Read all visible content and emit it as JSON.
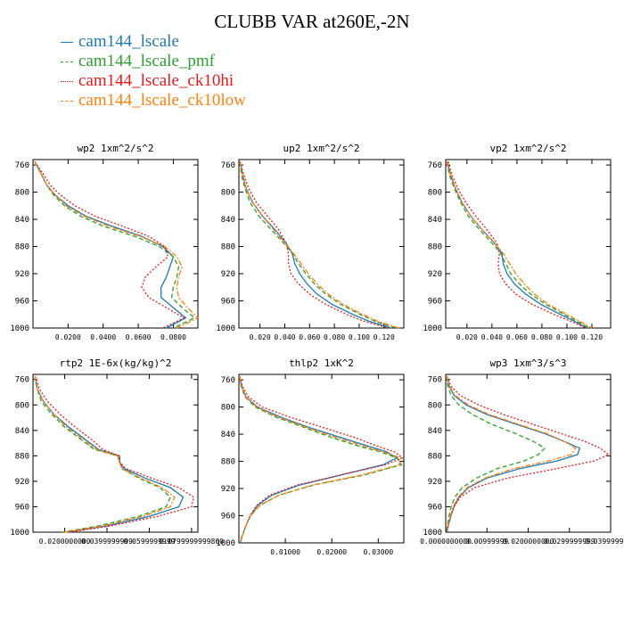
{
  "title": "CLUBB VAR at260E,-2N",
  "colors": {
    "cam144_lscale": "#1f77b4",
    "cam144_lscale_pmf": "#2ca02c",
    "cam144_lscale_ck10hi": "#e41a1c",
    "cam144_lscale_ck10low": "#ff7f0e"
  },
  "legend": [
    {
      "name": "cam144_lscale",
      "color": "#1f77b4",
      "dash": "solid"
    },
    {
      "name": "cam144_lscale_pmf",
      "color": "#2ca02c",
      "dash": "dashed"
    },
    {
      "name": "cam144_lscale_ck10hi",
      "color": "#e41a1c",
      "dash": "dotted"
    },
    {
      "name": "cam144_lscale_ck10low",
      "color": "#ff7f0e",
      "dash": "dashdot"
    }
  ],
  "chart_data": [
    {
      "type": "line",
      "title": "wp2  1xm^2/s^2",
      "xlim": [
        0.0,
        0.094
      ],
      "ylim": [
        1000,
        752
      ],
      "xticks": [
        0.02,
        0.04,
        0.06,
        0.08
      ],
      "xticklabels": [
        "0.0200",
        "0.0400",
        "0.0600",
        "0.0800"
      ],
      "yticks": [
        760,
        800,
        840,
        880,
        920,
        960,
        1000
      ],
      "yticklabels": [
        "760",
        "800",
        "840",
        "880",
        "920",
        "960",
        "1000"
      ],
      "y": [
        755,
        770,
        790,
        805,
        820,
        835,
        850,
        865,
        880,
        895,
        910,
        925,
        940,
        955,
        970,
        985,
        1000
      ],
      "series": [
        {
          "name": "cam144_lscale",
          "values": [
            0.001,
            0.004,
            0.008,
            0.013,
            0.02,
            0.03,
            0.045,
            0.062,
            0.074,
            0.08,
            0.078,
            0.076,
            0.073,
            0.073,
            0.08,
            0.087,
            0.076
          ]
        },
        {
          "name": "cam144_lscale_pmf",
          "values": [
            0.001,
            0.004,
            0.008,
            0.012,
            0.018,
            0.027,
            0.04,
            0.058,
            0.072,
            0.08,
            0.083,
            0.082,
            0.08,
            0.079,
            0.085,
            0.092,
            0.08
          ]
        },
        {
          "name": "cam144_lscale_ck10hi",
          "values": [
            0.001,
            0.005,
            0.01,
            0.016,
            0.024,
            0.035,
            0.051,
            0.066,
            0.075,
            0.077,
            0.07,
            0.064,
            0.062,
            0.066,
            0.076,
            0.086,
            0.074
          ]
        },
        {
          "name": "cam144_lscale_ck10low",
          "values": [
            0.001,
            0.004,
            0.008,
            0.013,
            0.019,
            0.029,
            0.043,
            0.061,
            0.075,
            0.082,
            0.085,
            0.083,
            0.082,
            0.083,
            0.088,
            0.094,
            0.082
          ]
        }
      ]
    },
    {
      "type": "line",
      "title": "up2  1xm^2/s^2",
      "xlim": [
        0.003,
        0.136
      ],
      "ylim": [
        1000,
        752
      ],
      "xticks": [
        0.02,
        0.04,
        0.06,
        0.08,
        0.1,
        0.12
      ],
      "xticklabels": [
        "0.020",
        "0.040",
        "0.060",
        "0.080",
        "0.100",
        "0.120"
      ],
      "yticks": [
        760,
        800,
        840,
        880,
        920,
        960,
        1000
      ],
      "yticklabels": [
        "760",
        "800",
        "840",
        "880",
        "920",
        "960",
        "1000"
      ],
      "y": [
        755,
        775,
        795,
        815,
        835,
        855,
        875,
        890,
        905,
        920,
        935,
        950,
        965,
        980,
        990,
        1000
      ],
      "series": [
        {
          "name": "cam144_lscale",
          "values": [
            0.004,
            0.006,
            0.009,
            0.014,
            0.022,
            0.032,
            0.041,
            0.046,
            0.048,
            0.052,
            0.058,
            0.066,
            0.078,
            0.095,
            0.108,
            0.126
          ]
        },
        {
          "name": "cam144_lscale_pmf",
          "values": [
            0.004,
            0.005,
            0.008,
            0.012,
            0.019,
            0.029,
            0.039,
            0.046,
            0.051,
            0.057,
            0.064,
            0.073,
            0.085,
            0.101,
            0.113,
            0.13
          ]
        },
        {
          "name": "cam144_lscale_ck10hi",
          "values": [
            0.004,
            0.007,
            0.011,
            0.017,
            0.026,
            0.035,
            0.041,
            0.043,
            0.043,
            0.045,
            0.051,
            0.06,
            0.073,
            0.09,
            0.104,
            0.124
          ]
        },
        {
          "name": "cam144_lscale_ck10low",
          "values": [
            0.004,
            0.006,
            0.009,
            0.014,
            0.022,
            0.031,
            0.04,
            0.047,
            0.053,
            0.059,
            0.066,
            0.075,
            0.087,
            0.103,
            0.115,
            0.132
          ]
        }
      ]
    },
    {
      "type": "line",
      "title": "vp2  1xm^2/s^2",
      "xlim": [
        0.003,
        0.135
      ],
      "ylim": [
        1000,
        752
      ],
      "xticks": [
        0.02,
        0.04,
        0.06,
        0.08,
        0.1,
        0.12
      ],
      "xticklabels": [
        "0.020",
        "0.040",
        "0.060",
        "0.080",
        "0.100",
        "0.120"
      ],
      "yticks": [
        760,
        800,
        840,
        880,
        920,
        960,
        1000
      ],
      "yticklabels": [
        "760",
        "800",
        "840",
        "880",
        "920",
        "960",
        "1000"
      ],
      "y": [
        755,
        775,
        795,
        815,
        835,
        855,
        875,
        890,
        905,
        920,
        935,
        950,
        965,
        980,
        990,
        1000
      ],
      "series": [
        {
          "name": "cam144_lscale",
          "values": [
            0.004,
            0.007,
            0.011,
            0.016,
            0.023,
            0.032,
            0.042,
            0.048,
            0.049,
            0.052,
            0.058,
            0.067,
            0.079,
            0.095,
            0.106,
            0.116
          ]
        },
        {
          "name": "cam144_lscale_pmf",
          "values": [
            0.004,
            0.006,
            0.01,
            0.015,
            0.021,
            0.03,
            0.04,
            0.047,
            0.051,
            0.055,
            0.062,
            0.071,
            0.083,
            0.098,
            0.108,
            0.118
          ]
        },
        {
          "name": "cam144_lscale_ck10hi",
          "values": [
            0.005,
            0.008,
            0.013,
            0.019,
            0.027,
            0.036,
            0.044,
            0.046,
            0.045,
            0.046,
            0.051,
            0.059,
            0.072,
            0.09,
            0.103,
            0.115
          ]
        },
        {
          "name": "cam144_lscale_ck10low",
          "values": [
            0.004,
            0.007,
            0.011,
            0.016,
            0.023,
            0.032,
            0.042,
            0.049,
            0.054,
            0.059,
            0.066,
            0.074,
            0.085,
            0.1,
            0.11,
            0.12
          ]
        }
      ]
    },
    {
      "type": "line",
      "title": "rtp2  1E-6x(kg/kg)^2",
      "xlim": [
        0.005,
        0.083
      ],
      "ylim": [
        1000,
        752
      ],
      "xticks": [
        0.02,
        0.04,
        0.06,
        0.08
      ],
      "xticklabels": [
        "0.0200000000",
        "0.0399999999",
        "0.0599999999",
        "0.0799999999800"
      ],
      "yticks": [
        760,
        800,
        840,
        880,
        920,
        960,
        1000
      ],
      "yticklabels": [
        "760",
        "800",
        "840",
        "880",
        "920",
        "960",
        "1000"
      ],
      "y": [
        755,
        775,
        795,
        815,
        835,
        855,
        870,
        880,
        890,
        900,
        915,
        930,
        945,
        960,
        975,
        990,
        1000
      ],
      "series": [
        {
          "name": "cam144_lscale",
          "values": [
            0.006,
            0.007,
            0.01,
            0.015,
            0.022,
            0.03,
            0.036,
            0.046,
            0.046,
            0.048,
            0.058,
            0.07,
            0.076,
            0.074,
            0.06,
            0.04,
            0.021
          ]
        },
        {
          "name": "cam144_lscale_pmf",
          "values": [
            0.006,
            0.007,
            0.009,
            0.014,
            0.02,
            0.028,
            0.034,
            0.045,
            0.046,
            0.047,
            0.055,
            0.065,
            0.07,
            0.068,
            0.055,
            0.036,
            0.019
          ]
        },
        {
          "name": "cam144_lscale_ck10hi",
          "values": [
            0.006,
            0.008,
            0.012,
            0.018,
            0.025,
            0.033,
            0.038,
            0.046,
            0.046,
            0.049,
            0.061,
            0.074,
            0.081,
            0.08,
            0.064,
            0.042,
            0.022
          ]
        },
        {
          "name": "cam144_lscale_ck10low",
          "values": [
            0.006,
            0.007,
            0.01,
            0.015,
            0.021,
            0.029,
            0.035,
            0.045,
            0.046,
            0.047,
            0.056,
            0.066,
            0.072,
            0.07,
            0.057,
            0.038,
            0.02
          ]
        }
      ]
    },
    {
      "type": "line",
      "title": "thlp2  1xK^2",
      "xlim": [
        0.0,
        0.0355
      ],
      "ylim": [
        1000,
        752
      ],
      "xticks": [
        0.01,
        0.02,
        0.03
      ],
      "xticklabels": [
        "0.01000",
        "0.02000",
        "0.03000"
      ],
      "yticks": [
        760,
        800,
        840,
        880,
        920,
        960,
        1000
      ],
      "yticklabels": [
        "760",
        "800",
        "840",
        "880",
        "920",
        "960",
        "1000"
      ],
      "y": [
        755,
        770,
        785,
        800,
        815,
        830,
        845,
        858,
        866,
        875,
        885,
        900,
        915,
        930,
        945,
        960,
        975,
        990,
        1000
      ],
      "series": [
        {
          "name": "cam144_lscale",
          "values": [
            0.0001,
            0.0006,
            0.0015,
            0.004,
            0.009,
            0.015,
            0.022,
            0.028,
            0.0318,
            0.034,
            0.031,
            0.022,
            0.013,
            0.007,
            0.004,
            0.0025,
            0.0015,
            0.0007,
            0.0003
          ]
        },
        {
          "name": "cam144_lscale_pmf",
          "values": [
            0.0001,
            0.0005,
            0.0013,
            0.0035,
            0.008,
            0.014,
            0.02,
            0.026,
            0.0305,
            0.034,
            0.035,
            0.027,
            0.016,
            0.0085,
            0.0045,
            0.0025,
            0.0015,
            0.0007,
            0.0003
          ]
        },
        {
          "name": "cam144_lscale_ck10hi",
          "values": [
            0.0002,
            0.0008,
            0.002,
            0.005,
            0.011,
            0.018,
            0.025,
            0.03,
            0.0335,
            0.0352,
            0.0315,
            0.022,
            0.0125,
            0.0065,
            0.0038,
            0.0024,
            0.0015,
            0.0007,
            0.0003
          ]
        },
        {
          "name": "cam144_lscale_ck10low",
          "values": [
            0.0001,
            0.0006,
            0.0014,
            0.0038,
            0.0085,
            0.0145,
            0.021,
            0.027,
            0.031,
            0.0348,
            0.0345,
            0.0265,
            0.0158,
            0.0085,
            0.0045,
            0.0025,
            0.0015,
            0.0007,
            0.0003
          ]
        }
      ]
    },
    {
      "type": "line",
      "title": "wp3  1xm^3/s^3",
      "xlim": [
        0.0,
        0.04
      ],
      "ylim": [
        1000,
        752
      ],
      "xticks": [
        0.0,
        0.01,
        0.02,
        0.03,
        0.04
      ],
      "xticklabels": [
        "0.0000000000",
        "0.00999999",
        "0.0200000000",
        "0.0299999999",
        "0.0399999999"
      ],
      "yticks": [
        760,
        800,
        840,
        880,
        920,
        960,
        1000
      ],
      "yticklabels": [
        "760",
        "800",
        "840",
        "880",
        "920",
        "960",
        "1000"
      ],
      "y": [
        755,
        770,
        785,
        800,
        815,
        830,
        845,
        858,
        868,
        878,
        888,
        900,
        915,
        930,
        945,
        960,
        975,
        990,
        1000
      ],
      "series": [
        {
          "name": "cam144_lscale",
          "values": [
            0.0002,
            0.0008,
            0.002,
            0.005,
            0.01,
            0.017,
            0.024,
            0.029,
            0.0325,
            0.032,
            0.027,
            0.018,
            0.01,
            0.0055,
            0.0032,
            0.002,
            0.0012,
            0.0006,
            0.0003
          ]
        },
        {
          "name": "cam144_lscale_pmf",
          "values": [
            0.0001,
            0.0005,
            0.0013,
            0.0032,
            0.0065,
            0.011,
            0.017,
            0.0215,
            0.024,
            0.0225,
            0.019,
            0.0125,
            0.0075,
            0.004,
            0.0022,
            0.0013,
            0.0008,
            0.0004,
            0.0002
          ]
        },
        {
          "name": "cam144_lscale_ck10hi",
          "values": [
            0.0003,
            0.0012,
            0.0035,
            0.008,
            0.014,
            0.021,
            0.028,
            0.034,
            0.0375,
            0.0395,
            0.036,
            0.027,
            0.015,
            0.007,
            0.0035,
            0.002,
            0.0012,
            0.0006,
            0.0003
          ]
        },
        {
          "name": "cam144_lscale_ck10low",
          "values": [
            0.0002,
            0.0009,
            0.0023,
            0.0055,
            0.0105,
            0.0175,
            0.0245,
            0.029,
            0.0315,
            0.0305,
            0.025,
            0.0165,
            0.0095,
            0.0052,
            0.003,
            0.0018,
            0.0011,
            0.0005,
            0.0003
          ]
        }
      ]
    }
  ]
}
